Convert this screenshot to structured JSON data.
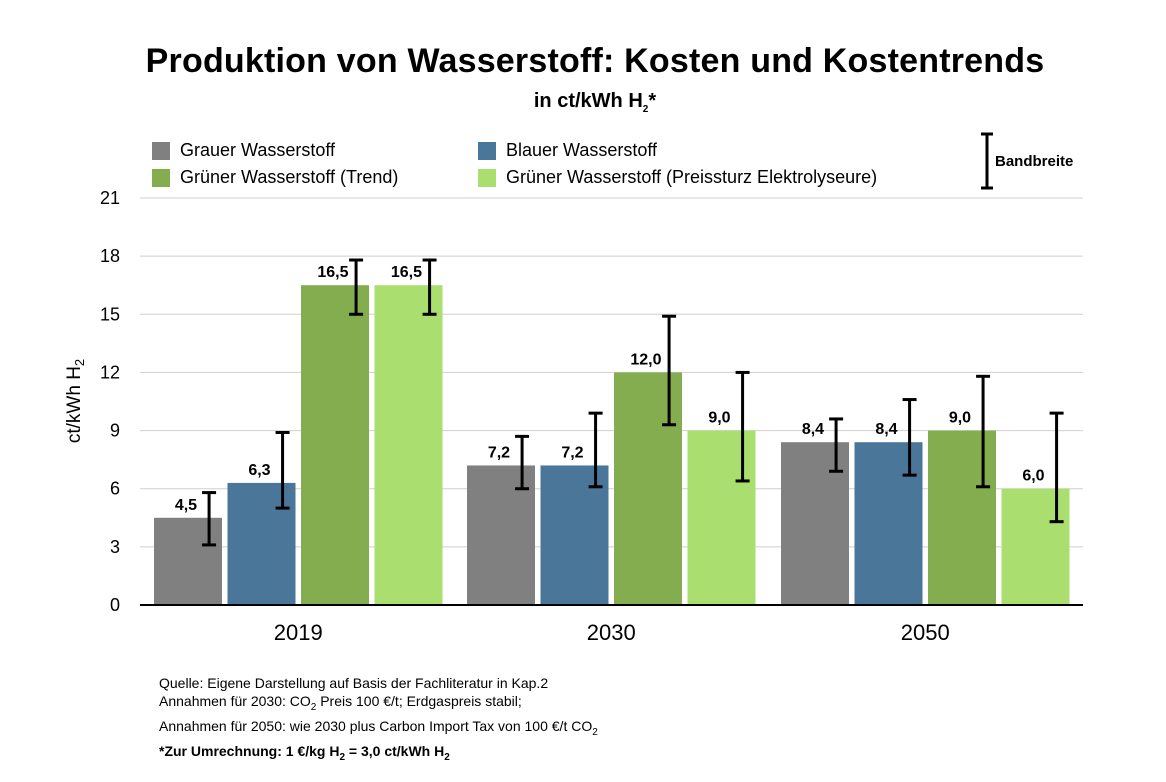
{
  "chart_data": {
    "type": "bar",
    "title": "Produktion von Wasserstoff: Kosten und Kostentrends",
    "subtitle_main": "in ct/kWh H",
    "subtitle_sub": "2",
    "subtitle_tail": "*",
    "ylabel_main": "ct/kWh H",
    "ylabel_sub": "2",
    "ylim": [
      0,
      21
    ],
    "yticks": [
      "0",
      "3",
      "6",
      "9",
      "12",
      "15",
      "18",
      "21"
    ],
    "categories": [
      "2019",
      "2030",
      "2050"
    ],
    "series": [
      {
        "name": "Grauer Wasserstoff",
        "color": "#808080",
        "values": [
          4.5,
          7.2,
          8.4
        ],
        "labels": [
          "4,5",
          "7,2",
          "8,4"
        ],
        "err_low": [
          3.1,
          6.0,
          6.9
        ],
        "err_high": [
          5.8,
          8.7,
          9.6
        ]
      },
      {
        "name": "Blauer Wasserstoff",
        "color": "#4a7799",
        "values": [
          6.3,
          7.2,
          8.4
        ],
        "labels": [
          "6,3",
          "7,2",
          "8,4"
        ],
        "err_low": [
          5.0,
          6.1,
          6.7
        ],
        "err_high": [
          8.9,
          9.9,
          10.6
        ]
      },
      {
        "name": "Grüner Wasserstoff (Trend)",
        "color": "#83ad4f",
        "values": [
          16.5,
          12.0,
          9.0
        ],
        "labels": [
          "16,5",
          "12,0",
          "9,0"
        ],
        "err_low": [
          15.0,
          9.3,
          6.1
        ],
        "err_high": [
          17.8,
          14.9,
          11.8
        ]
      },
      {
        "name": "Grüner Wasserstoff (Preissturz Elektrolyseure)",
        "color": "#aade6e",
        "values": [
          16.5,
          9.0,
          6.0
        ],
        "labels": [
          "16,5",
          "9,0",
          "6,0"
        ],
        "err_low": [
          15.0,
          6.4,
          4.3
        ],
        "err_high": [
          17.8,
          12.0,
          9.9
        ]
      }
    ],
    "error_legend_label": "Bandbreite",
    "grid": true,
    "legend_position": "top"
  },
  "notes": {
    "line1": "Quelle: Eigene Darstellung auf Basis der Fachliteratur in Kap.2",
    "line2_a": "Annahmen für 2030: CO",
    "line2_sub": "2",
    "line2_b": " Preis 100 €/t; Erdgaspreis stabil;",
    "line3_a": "Annahmen für 2050: wie 2030 plus Carbon Import Tax von 100 €/t CO",
    "line3_sub": "2",
    "line4_a": "*Zur Umrechnung: 1 €/kg H",
    "line4_sub1": "2",
    "line4_b": " = 3,0 ct/kWh H",
    "line4_sub2": "2"
  }
}
